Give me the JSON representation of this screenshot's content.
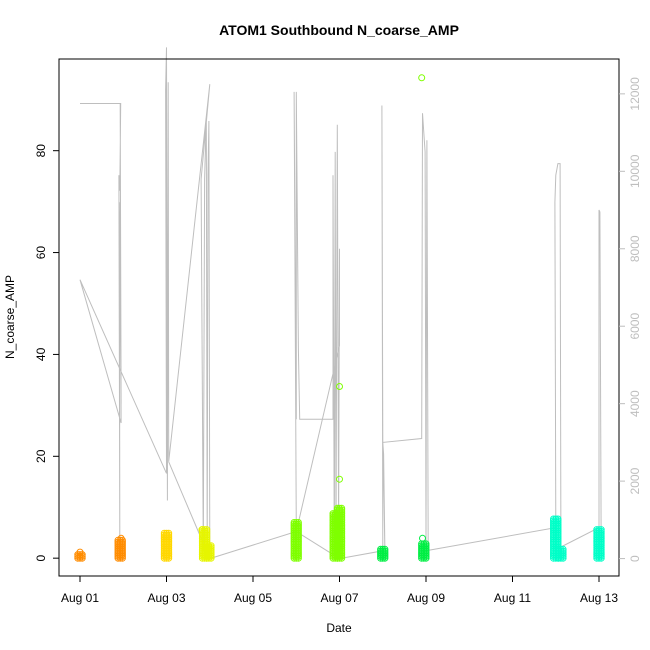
{
  "chart_data": {
    "type": "scatter",
    "title": "ATOM1 Southbound N_coarse_AMP",
    "xlabel": "Date",
    "ylabel": "N_coarse_AMP",
    "x_ticks": [
      "Aug 01",
      "Aug 03",
      "Aug 05",
      "Aug 07",
      "Aug 09",
      "Aug 11",
      "Aug 13"
    ],
    "y_ticks": [
      0,
      20,
      40,
      60,
      80
    ],
    "y2_ticks": [
      0,
      2000,
      4000,
      6000,
      8000,
      10000,
      12000
    ],
    "xlim_days": [
      0.0,
      12.45
    ],
    "ylim": [
      -3.5,
      98
    ],
    "y2lim": [
      -450,
      12900
    ],
    "x_tick_days": [
      0,
      2,
      4,
      6,
      8,
      10,
      12
    ],
    "grid": false,
    "colors": {
      "secondary_line": "#bebebe",
      "axis": "#000000",
      "right_axis": "#bebebe"
    },
    "series": [
      {
        "color": "#ff8c00",
        "clusters": [
          {
            "day": 0.0,
            "low": 0.0,
            "high": 0.8
          },
          {
            "day": 0.93,
            "low": 0.0,
            "high": 3.8
          }
        ],
        "outliers": [
          {
            "day": 0.0,
            "value": 1.2
          },
          {
            "day": 0.95,
            "value": 3.9
          }
        ]
      },
      {
        "color": "#ffd700",
        "clusters": [
          {
            "day": 2.0,
            "low": 0.0,
            "high": 5.0
          }
        ],
        "outliers": []
      },
      {
        "color": "#e6f500",
        "clusters": [
          {
            "day": 2.88,
            "low": 0.0,
            "high": 5.6
          },
          {
            "day": 2.98,
            "low": 0.0,
            "high": 2.5
          }
        ],
        "outliers": [
          {
            "day": 2.82,
            "value": 5.6
          }
        ]
      },
      {
        "color": "#7fff00",
        "clusters": [
          {
            "day": 5.0,
            "low": 0.0,
            "high": 7.0
          },
          {
            "day": 5.9,
            "low": 0.0,
            "high": 9.0
          },
          {
            "day": 6.0,
            "low": 0.0,
            "high": 10.0
          }
        ],
        "outliers": [
          {
            "day": 6.0,
            "value": 15.5
          },
          {
            "day": 6.0,
            "value": 33.7
          },
          {
            "day": 7.9,
            "value": 94.3
          }
        ]
      },
      {
        "color": "#00ee44",
        "clusters": [
          {
            "day": 7.0,
            "low": 0.0,
            "high": 2.0
          },
          {
            "day": 7.95,
            "low": 0.0,
            "high": 3.0
          }
        ],
        "outliers": [
          {
            "day": 7.92,
            "value": 3.9
          }
        ]
      },
      {
        "color": "#00ffc8",
        "clusters": [
          {
            "day": 11.0,
            "low": 0.0,
            "high": 8.0
          },
          {
            "day": 11.12,
            "low": 0.0,
            "high": 2.0
          },
          {
            "day": 12.0,
            "low": 0.0,
            "high": 5.8
          }
        ],
        "outliers": []
      }
    ],
    "secondary_series": {
      "name": "",
      "axis": "right",
      "points": [
        [
          0.0,
          11750
        ],
        [
          0.94,
          11750
        ],
        [
          0.92,
          9500
        ],
        [
          0.9,
          9900
        ],
        [
          0.92,
          500
        ],
        [
          0.91,
          9200
        ],
        [
          0.95,
          4000
        ],
        [
          0.93,
          11750
        ],
        [
          0.95,
          3500
        ],
        [
          0.0,
          7200
        ],
        [
          2.0,
          2200
        ],
        [
          1.98,
          12100
        ],
        [
          2.0,
          13200
        ],
        [
          2.02,
          1500
        ],
        [
          2.04,
          12300
        ],
        [
          2.05,
          2500
        ],
        [
          3.0,
          12250
        ],
        [
          2.8,
          9800
        ],
        [
          2.85,
          200
        ],
        [
          2.88,
          9800
        ],
        [
          2.92,
          11400
        ],
        [
          2.94,
          300
        ],
        [
          2.96,
          9900
        ],
        [
          2.98,
          11300
        ],
        [
          3.0,
          0
        ],
        [
          2.05,
          2500
        ],
        [
          3.0,
          0
        ],
        [
          5.0,
          700
        ],
        [
          4.95,
          12050
        ],
        [
          5.0,
          3600
        ],
        [
          5.0,
          12050
        ],
        [
          5.05,
          5400
        ],
        [
          5.08,
          3600
        ],
        [
          5.85,
          3600
        ],
        [
          5.85,
          9900
        ],
        [
          5.88,
          100
        ],
        [
          5.9,
          10500
        ],
        [
          5.92,
          300
        ],
        [
          5.95,
          11200
        ],
        [
          5.98,
          800
        ],
        [
          6.0,
          8000
        ],
        [
          6.0,
          5500
        ],
        [
          5.0,
          700
        ],
        [
          6.0,
          0
        ],
        [
          7.0,
          200
        ],
        [
          6.98,
          11700
        ],
        [
          7.0,
          3000
        ],
        [
          7.02,
          2700
        ],
        [
          7.05,
          200
        ],
        [
          7.0,
          3000
        ],
        [
          7.9,
          3100
        ],
        [
          7.92,
          11500
        ],
        [
          7.95,
          11000
        ],
        [
          7.98,
          10500
        ],
        [
          8.0,
          400
        ],
        [
          8.02,
          10800
        ],
        [
          8.05,
          200
        ],
        [
          8.0,
          200
        ],
        [
          11.0,
          800
        ],
        [
          10.98,
          9200
        ],
        [
          11.0,
          9900
        ],
        [
          11.05,
          10200
        ],
        [
          11.1,
          10200
        ],
        [
          11.12,
          300
        ],
        [
          11.12,
          300
        ],
        [
          12.0,
          800
        ],
        [
          12.0,
          9000
        ],
        [
          12.02,
          8950
        ],
        [
          12.05,
          100
        ]
      ]
    }
  }
}
